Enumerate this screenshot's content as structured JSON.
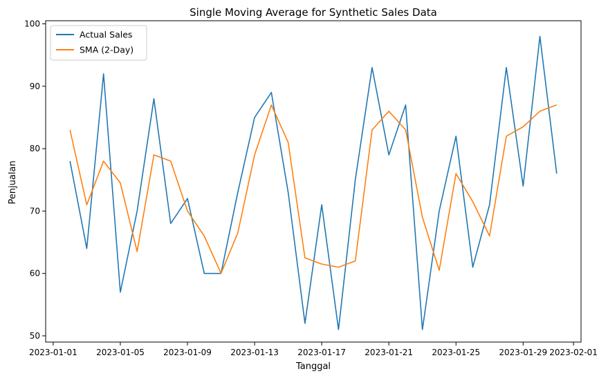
{
  "chart_data": {
    "type": "line",
    "title": "Single Moving Average for Synthetic Sales Data",
    "xlabel": "Tanggal",
    "ylabel": "Penjualan",
    "xlim": [
      "2023-01-01",
      "2023-02-01"
    ],
    "ylim": [
      49,
      100.5
    ],
    "x_ticks": [
      "2023-01-01",
      "2023-01-05",
      "2023-01-09",
      "2023-01-13",
      "2023-01-17",
      "2023-01-21",
      "2023-01-25",
      "2023-01-29",
      "2023-02-01"
    ],
    "y_ticks": [
      50,
      60,
      70,
      80,
      90,
      100
    ],
    "legend_position": "top-left",
    "grid": false,
    "x": [
      "2023-01-02",
      "2023-01-03",
      "2023-01-04",
      "2023-01-05",
      "2023-01-06",
      "2023-01-07",
      "2023-01-08",
      "2023-01-09",
      "2023-01-10",
      "2023-01-11",
      "2023-01-12",
      "2023-01-13",
      "2023-01-14",
      "2023-01-15",
      "2023-01-16",
      "2023-01-17",
      "2023-01-18",
      "2023-01-19",
      "2023-01-20",
      "2023-01-21",
      "2023-01-22",
      "2023-01-23",
      "2023-01-24",
      "2023-01-25",
      "2023-01-26",
      "2023-01-27",
      "2023-01-28",
      "2023-01-29",
      "2023-01-30",
      "2023-01-31"
    ],
    "series": [
      {
        "name": "Actual Sales",
        "color": "#1f77b4",
        "values": [
          78,
          64,
          92,
          57,
          70,
          88,
          68,
          72,
          60,
          60,
          73,
          85,
          89,
          73,
          52,
          71,
          51,
          75,
          93,
          79,
          87,
          51,
          70,
          82,
          61,
          71,
          93,
          74,
          98,
          76
        ]
      },
      {
        "name": "SMA (2-Day)",
        "color": "#ff7f0e",
        "values": [
          83,
          71,
          78,
          74.5,
          63.5,
          79,
          78,
          70,
          66,
          60,
          66.5,
          79,
          87,
          81,
          62.5,
          61.5,
          61,
          62,
          83,
          86,
          83,
          69,
          60.5,
          76,
          71.5,
          66,
          82,
          83.5,
          86,
          87
        ]
      }
    ]
  }
}
